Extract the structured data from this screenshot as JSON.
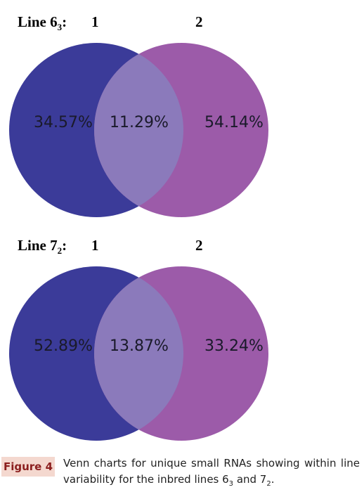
{
  "chart_data": [
    {
      "type": "venn",
      "title": {
        "text": "Line 6",
        "subscript": "3",
        "suffix": ":"
      },
      "sets": [
        {
          "name": "1",
          "color": "#3b3b99"
        },
        {
          "name": "2",
          "color": "#9c5ba9"
        }
      ],
      "overlap_color": "#8b7abb",
      "values": [
        34.57,
        11.29,
        54.14
      ],
      "value_labels": [
        "34.57%",
        "11.29%",
        "54.14%"
      ]
    },
    {
      "type": "venn",
      "title": {
        "text": "Line 7",
        "subscript": "2",
        "suffix": ":"
      },
      "sets": [
        {
          "name": "1",
          "color": "#3b3b99"
        },
        {
          "name": "2",
          "color": "#9c5ba9"
        }
      ],
      "overlap_color": "#8b7abb",
      "values": [
        52.89,
        13.87,
        33.24
      ],
      "value_labels": [
        "52.89%",
        "13.87%",
        "33.24%"
      ]
    }
  ],
  "caption": {
    "label": "Figure 4",
    "text": [
      "Venn charts for unique small RNAs showing within line variability for the inbred lines 6",
      "3",
      " and 7",
      "2",
      "."
    ]
  }
}
